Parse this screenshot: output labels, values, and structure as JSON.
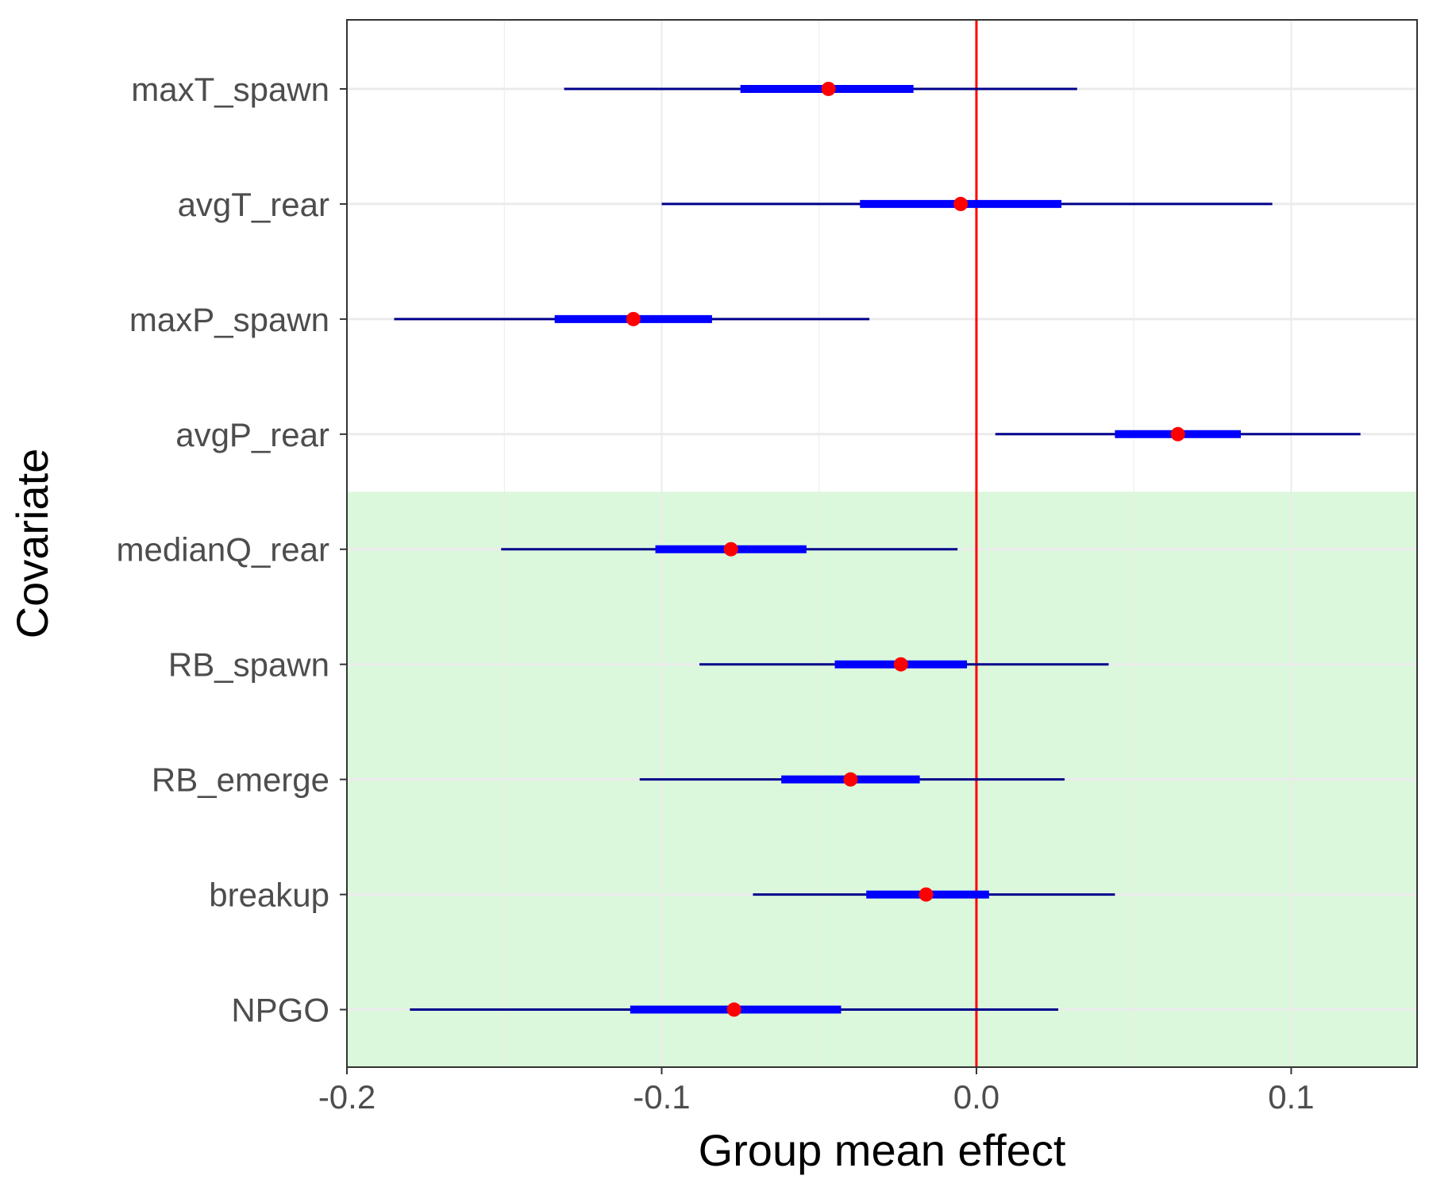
{
  "chart_data": {
    "type": "forest",
    "xlabel": "Group mean effect",
    "ylabel": "Covariate",
    "xlim": [
      -0.2,
      0.14
    ],
    "x_ticks": [
      -0.2,
      -0.1,
      0.0,
      0.1
    ],
    "x_tick_labels": [
      "-0.2",
      "-0.1",
      "0.0",
      "0.1"
    ],
    "reference_line": 0.0,
    "grid": true,
    "highlight_region": {
      "from_covariate": "medianQ_rear",
      "to_covariate": "NPGO",
      "color": "#dcf8dc"
    },
    "colors": {
      "thin_interval": "#00008b",
      "thick_interval": "#0000ff",
      "point": "#ff0000",
      "reference_line": "#ff0000",
      "highlight": "#dcf8dc"
    },
    "covariates": [
      {
        "name": "maxT_spawn",
        "mean": -0.047,
        "inner": [
          -0.075,
          -0.02
        ],
        "outer": [
          -0.131,
          0.032
        ]
      },
      {
        "name": "avgT_rear",
        "mean": -0.005,
        "inner": [
          -0.037,
          0.027
        ],
        "outer": [
          -0.1,
          0.094
        ]
      },
      {
        "name": "maxP_spawn",
        "mean": -0.109,
        "inner": [
          -0.134,
          -0.084
        ],
        "outer": [
          -0.185,
          -0.034
        ]
      },
      {
        "name": "avgP_rear",
        "mean": 0.064,
        "inner": [
          0.044,
          0.084
        ],
        "outer": [
          0.006,
          0.122
        ]
      },
      {
        "name": "medianQ_rear",
        "mean": -0.078,
        "inner": [
          -0.102,
          -0.054
        ],
        "outer": [
          -0.151,
          -0.006
        ]
      },
      {
        "name": "RB_spawn",
        "mean": -0.024,
        "inner": [
          -0.045,
          -0.003
        ],
        "outer": [
          -0.088,
          0.042
        ]
      },
      {
        "name": "RB_emerge",
        "mean": -0.04,
        "inner": [
          -0.062,
          -0.018
        ],
        "outer": [
          -0.107,
          0.028
        ]
      },
      {
        "name": "breakup",
        "mean": -0.016,
        "inner": [
          -0.035,
          0.004
        ],
        "outer": [
          -0.071,
          0.044
        ]
      },
      {
        "name": "NPGO",
        "mean": -0.077,
        "inner": [
          -0.11,
          -0.043
        ],
        "outer": [
          -0.18,
          0.026
        ]
      }
    ]
  }
}
